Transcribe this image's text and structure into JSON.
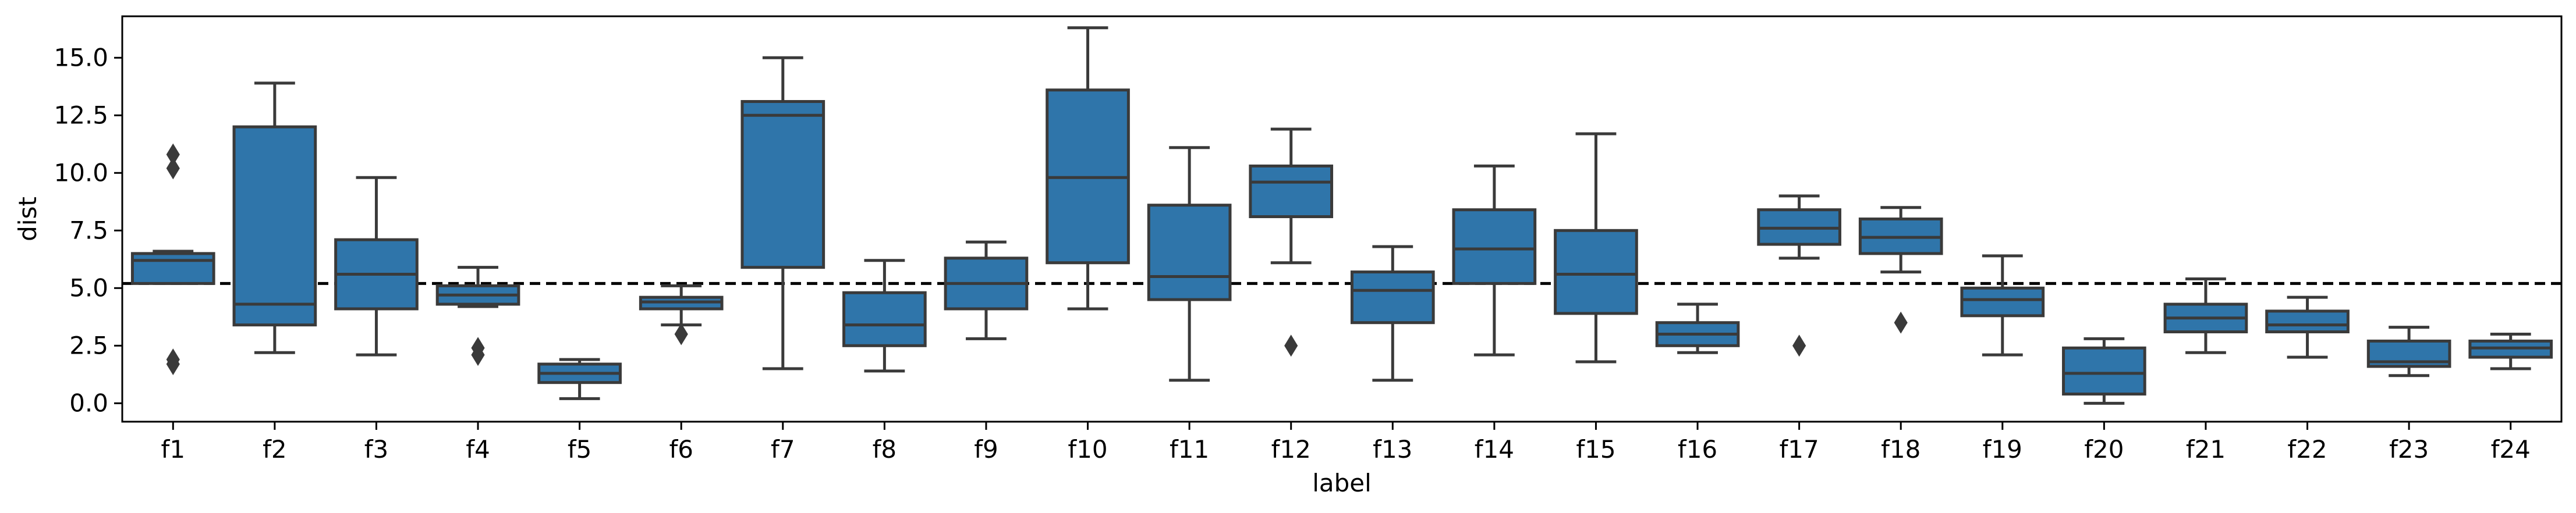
{
  "chart_data": {
    "type": "box",
    "xlabel": "label",
    "ylabel": "dist",
    "ylim": [
      -0.8,
      16.8
    ],
    "yticks": [
      0.0,
      2.5,
      5.0,
      7.5,
      10.0,
      12.5,
      15.0
    ],
    "ytick_labels": [
      "0.0",
      "2.5",
      "5.0",
      "7.5",
      "10.0",
      "12.5",
      "15.0"
    ],
    "reference_line": {
      "y": 5.2,
      "style": "dashed",
      "color": "#000000"
    },
    "box_color": "#2f75aa",
    "edge_color": "#3a3a3a",
    "categories": [
      "f1",
      "f2",
      "f3",
      "f4",
      "f5",
      "f6",
      "f7",
      "f8",
      "f9",
      "f10",
      "f11",
      "f12",
      "f13",
      "f14",
      "f15",
      "f16",
      "f17",
      "f18",
      "f19",
      "f20",
      "f21",
      "f22",
      "f23",
      "f24"
    ],
    "boxes": [
      {
        "label": "f1",
        "whislo": 5.2,
        "q1": 5.2,
        "med": 6.2,
        "q3": 6.5,
        "whishi": 6.6,
        "fliers": [
          10.8,
          10.2,
          1.9,
          1.7
        ]
      },
      {
        "label": "f2",
        "whislo": 2.2,
        "q1": 3.4,
        "med": 4.3,
        "q3": 12.0,
        "whishi": 13.9,
        "fliers": []
      },
      {
        "label": "f3",
        "whislo": 2.1,
        "q1": 4.1,
        "med": 5.6,
        "q3": 7.1,
        "whishi": 9.8,
        "fliers": []
      },
      {
        "label": "f4",
        "whislo": 4.2,
        "q1": 4.3,
        "med": 4.7,
        "q3": 5.1,
        "whishi": 5.9,
        "fliers": [
          2.4,
          2.1
        ]
      },
      {
        "label": "f5",
        "whislo": 0.2,
        "q1": 0.9,
        "med": 1.3,
        "q3": 1.7,
        "whishi": 1.9,
        "fliers": []
      },
      {
        "label": "f6",
        "whislo": 3.4,
        "q1": 4.1,
        "med": 4.4,
        "q3": 4.6,
        "whishi": 5.1,
        "fliers": [
          3.0
        ]
      },
      {
        "label": "f7",
        "whislo": 1.5,
        "q1": 5.9,
        "med": 12.5,
        "q3": 13.1,
        "whishi": 15.0,
        "fliers": []
      },
      {
        "label": "f8",
        "whislo": 1.4,
        "q1": 2.5,
        "med": 3.4,
        "q3": 4.8,
        "whishi": 6.2,
        "fliers": []
      },
      {
        "label": "f9",
        "whislo": 2.8,
        "q1": 4.1,
        "med": 5.2,
        "q3": 6.3,
        "whishi": 7.0,
        "fliers": []
      },
      {
        "label": "f10",
        "whislo": 4.1,
        "q1": 6.1,
        "med": 9.8,
        "q3": 13.6,
        "whishi": 16.3,
        "fliers": []
      },
      {
        "label": "f11",
        "whislo": 1.0,
        "q1": 4.5,
        "med": 5.5,
        "q3": 8.6,
        "whishi": 11.1,
        "fliers": []
      },
      {
        "label": "f12",
        "whislo": 6.1,
        "q1": 8.1,
        "med": 9.6,
        "q3": 10.3,
        "whishi": 11.9,
        "fliers": [
          2.5
        ]
      },
      {
        "label": "f13",
        "whislo": 1.0,
        "q1": 3.5,
        "med": 4.9,
        "q3": 5.7,
        "whishi": 6.8,
        "fliers": []
      },
      {
        "label": "f14",
        "whislo": 2.1,
        "q1": 5.2,
        "med": 6.7,
        "q3": 8.4,
        "whishi": 10.3,
        "fliers": []
      },
      {
        "label": "f15",
        "whislo": 1.8,
        "q1": 3.9,
        "med": 5.6,
        "q3": 7.5,
        "whishi": 11.7,
        "fliers": []
      },
      {
        "label": "f16",
        "whislo": 2.2,
        "q1": 2.5,
        "med": 3.0,
        "q3": 3.5,
        "whishi": 4.3,
        "fliers": []
      },
      {
        "label": "f17",
        "whislo": 6.3,
        "q1": 6.9,
        "med": 7.6,
        "q3": 8.4,
        "whishi": 9.0,
        "fliers": [
          2.5
        ]
      },
      {
        "label": "f18",
        "whislo": 5.7,
        "q1": 6.5,
        "med": 7.2,
        "q3": 8.0,
        "whishi": 8.5,
        "fliers": [
          3.5
        ]
      },
      {
        "label": "f19",
        "whislo": 2.1,
        "q1": 3.8,
        "med": 4.5,
        "q3": 5.0,
        "whishi": 6.4,
        "fliers": []
      },
      {
        "label": "f20",
        "whislo": 0.0,
        "q1": 0.4,
        "med": 1.3,
        "q3": 2.4,
        "whishi": 2.8,
        "fliers": []
      },
      {
        "label": "f21",
        "whislo": 2.2,
        "q1": 3.1,
        "med": 3.7,
        "q3": 4.3,
        "whishi": 5.4,
        "fliers": []
      },
      {
        "label": "f22",
        "whislo": 2.0,
        "q1": 3.1,
        "med": 3.4,
        "q3": 4.0,
        "whishi": 4.6,
        "fliers": []
      },
      {
        "label": "f23",
        "whislo": 1.2,
        "q1": 1.6,
        "med": 1.8,
        "q3": 2.7,
        "whishi": 3.3,
        "fliers": []
      },
      {
        "label": "f24",
        "whislo": 1.5,
        "q1": 2.0,
        "med": 2.4,
        "q3": 2.7,
        "whishi": 3.0,
        "fliers": []
      }
    ]
  }
}
